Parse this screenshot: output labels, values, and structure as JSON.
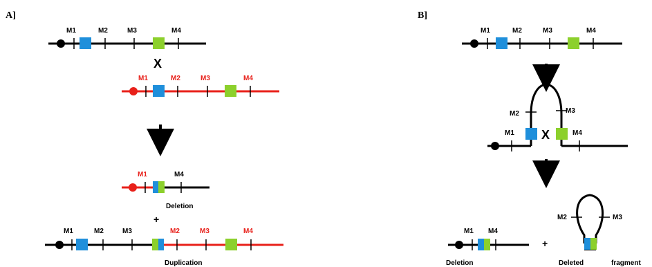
{
  "panels": {
    "a": "A]",
    "b": "B]"
  },
  "markers": {
    "m1": "M1",
    "m2": "M2",
    "m3": "M3",
    "m4": "M4"
  },
  "symbols": {
    "cross": "X",
    "plus": "+"
  },
  "captions": {
    "a_deletion": "Deletion",
    "a_duplication": "Duplication",
    "b_deletion": "Deletion",
    "b_deleted_fragment_1": "Deleted",
    "b_deleted_fragment_2": "fragment"
  },
  "colors": {
    "black": "#000000",
    "red": "#e8201a",
    "blue": "#1f8fdb",
    "green": "#8cd02c"
  }
}
